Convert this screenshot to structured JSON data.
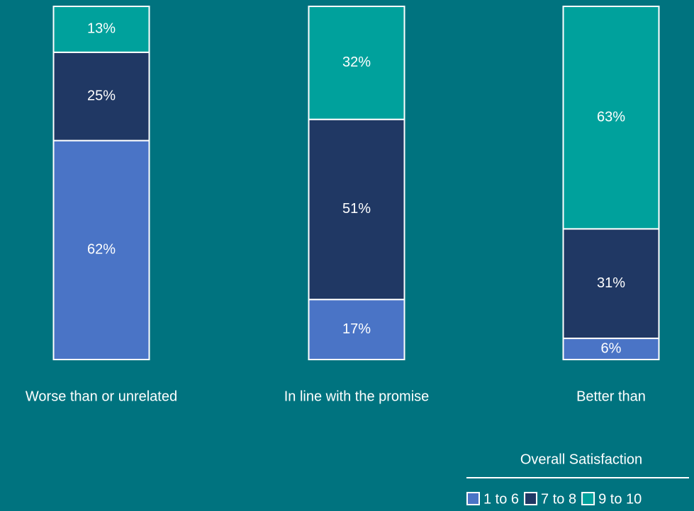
{
  "chart_data": {
    "type": "stacked_bar",
    "categories": [
      "Worse than or unrelated",
      "In line with the promise",
      "Better than"
    ],
    "series": [
      {
        "name": "1 to 6",
        "color": "#4a74c6",
        "values": [
          62,
          17,
          6
        ],
        "value_labels": [
          "62%",
          "17%",
          "6%"
        ]
      },
      {
        "name": "7 to 8",
        "color": "#203864",
        "values": [
          25,
          51,
          31
        ],
        "value_labels": [
          "25%",
          "51%",
          "31%"
        ]
      },
      {
        "name": "9 to 10",
        "color": "#00a19c",
        "values": [
          13,
          32,
          63
        ],
        "value_labels": [
          "13%",
          "32%",
          "63%"
        ]
      }
    ],
    "legend_title": "Overall Satisfaction",
    "legend_position": "lower right"
  }
}
